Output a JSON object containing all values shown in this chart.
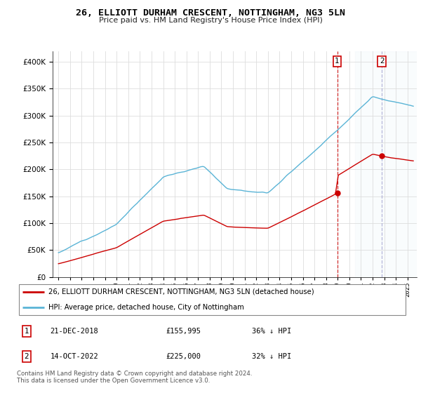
{
  "title": "26, ELLIOTT DURHAM CRESCENT, NOTTINGHAM, NG3 5LN",
  "subtitle": "Price paid vs. HM Land Registry's House Price Index (HPI)",
  "legend_line1": "26, ELLIOTT DURHAM CRESCENT, NOTTINGHAM, NG3 5LN (detached house)",
  "legend_line2": "HPI: Average price, detached house, City of Nottingham",
  "annotation1_date": "21-DEC-2018",
  "annotation1_price": "£155,995",
  "annotation1_hpi": "36% ↓ HPI",
  "annotation2_date": "14-OCT-2022",
  "annotation2_price": "£225,000",
  "annotation2_hpi": "32% ↓ HPI",
  "footer": "Contains HM Land Registry data © Crown copyright and database right 2024.\nThis data is licensed under the Open Government Licence v3.0.",
  "ylim": [
    0,
    420000
  ],
  "yticks": [
    0,
    50000,
    100000,
    150000,
    200000,
    250000,
    300000,
    350000,
    400000
  ],
  "hpi_color": "#5ab4d6",
  "price_color": "#cc0000",
  "background_color": "#ffffff",
  "grid_color": "#dddddd",
  "sale1_x": 2018.96,
  "sale1_y": 155995,
  "sale2_x": 2022.79,
  "sale2_y": 225000,
  "xmin": 1994.5,
  "xmax": 2025.8
}
